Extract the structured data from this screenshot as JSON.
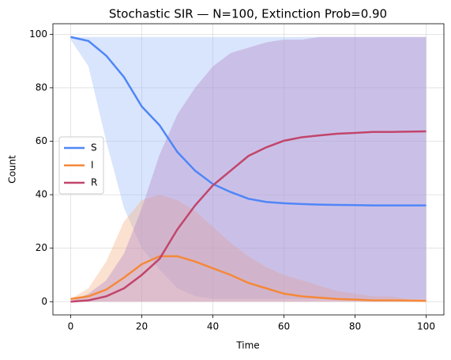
{
  "chart_data": {
    "type": "line",
    "title": "Stochastic SIR — N=100, Extinction Prob=0.90",
    "xlabel": "Time",
    "ylabel": "Count",
    "x": [
      0,
      5,
      10,
      15,
      20,
      25,
      30,
      35,
      40,
      45,
      50,
      55,
      60,
      65,
      70,
      75,
      80,
      85,
      90,
      95,
      100
    ],
    "xlim": [
      -5,
      105
    ],
    "ylim": [
      -4.95,
      103.95
    ],
    "xticks": [
      0,
      20,
      40,
      60,
      80,
      100
    ],
    "yticks": [
      0,
      20,
      40,
      60,
      80,
      100
    ],
    "grid": true,
    "legend": "center left",
    "series": [
      {
        "name": "S",
        "color": "#4f86f7",
        "band_color": "#9fbff7",
        "values": [
          99,
          97.5,
          92,
          84,
          73,
          66,
          56,
          49,
          44,
          41,
          38.5,
          37.3,
          36.8,
          36.5,
          36.3,
          36.2,
          36.1,
          36,
          36,
          36,
          36
        ],
        "band_lower": [
          98,
          88,
          60,
          35,
          20,
          12,
          5,
          2,
          1,
          1,
          1,
          1,
          1,
          1,
          1,
          1,
          1,
          1,
          1,
          1,
          1
        ],
        "band_upper": [
          99,
          99,
          99,
          99,
          99,
          99,
          99,
          99,
          99,
          99,
          99,
          99,
          99,
          99,
          99,
          99,
          99,
          99,
          99,
          99,
          99
        ]
      },
      {
        "name": "I",
        "color": "#f5883a",
        "band_color": "#f5b48a",
        "values": [
          1,
          2,
          4.5,
          9,
          14,
          17,
          17,
          15,
          12.5,
          10,
          7,
          5,
          3,
          2,
          1.5,
          1,
          0.8,
          0.5,
          0.5,
          0.4,
          0.3
        ],
        "band_lower": [
          0,
          0,
          0,
          0,
          0,
          0,
          0,
          0,
          0,
          0,
          0,
          0,
          0,
          0,
          0,
          0,
          0,
          0,
          0,
          0,
          0
        ],
        "band_upper": [
          1,
          5,
          15,
          30,
          38,
          40,
          38,
          34,
          28,
          22,
          17,
          13,
          10,
          8,
          6,
          4,
          3,
          2,
          2,
          1,
          1
        ]
      },
      {
        "name": "R",
        "color": "#c2456b",
        "band_color": "#b48ac8",
        "values": [
          0,
          0.5,
          2,
          5,
          10,
          16,
          27,
          36,
          43.5,
          49,
          54.5,
          57.7,
          60.2,
          61.5,
          62.2,
          62.8,
          63.1,
          63.5,
          63.5,
          63.6,
          63.7
        ],
        "band_lower": [
          0,
          0,
          0,
          0,
          0,
          0,
          0,
          0,
          0,
          0,
          0,
          0,
          0,
          0,
          0,
          0,
          0,
          0,
          0,
          0,
          0
        ],
        "band_upper": [
          0,
          3,
          8,
          18,
          35,
          55,
          70,
          80,
          88,
          93,
          95,
          97,
          98,
          98,
          99,
          99,
          99,
          99,
          99,
          99,
          99
        ]
      }
    ]
  }
}
